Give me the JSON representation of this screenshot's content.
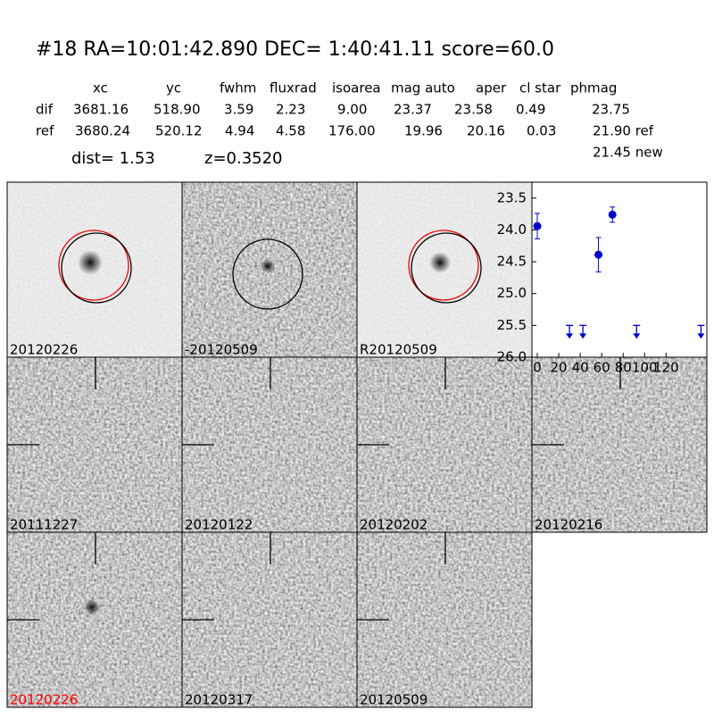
{
  "header": {
    "title": "#18   RA=10:01:42.890 DEC= 1:40:41.11      score=60.0"
  },
  "table": {
    "columns": [
      "xc",
      "yc",
      "fwhm",
      "fluxrad",
      "isoarea",
      "mag auto",
      "aper",
      "cl star",
      "phmag"
    ],
    "rows": [
      [
        "dif",
        "3681.16",
        "518.90",
        "3.59",
        "2.23",
        "9.00",
        "23.37",
        "23.58",
        "0.49",
        "23.75"
      ],
      [
        "ref",
        "3680.24",
        "520.12",
        "4.94",
        "4.58",
        "176.00",
        "19.96",
        "20.16",
        "0.03",
        "21.90 ref"
      ]
    ],
    "extra": "21.45 new",
    "dist": "dist=  1.53",
    "z": "z=0.3520"
  },
  "panels": [
    {
      "label": "20120226"
    },
    {
      "label": "-20120509"
    },
    {
      "label": "R20120509"
    },
    {
      "label": "20111227"
    },
    {
      "label": "20120122"
    },
    {
      "label": "20120202"
    },
    {
      "label": "20120216"
    },
    {
      "label": "20120226",
      "label_color": "#ff0000"
    },
    {
      "label": "20120317"
    },
    {
      "label": "20120509"
    }
  ],
  "chart_data": {
    "type": "scatter",
    "xlim": [
      -5,
      158
    ],
    "ylim": [
      26.0,
      23.25
    ],
    "xticks": [
      0,
      20,
      40,
      60,
      80,
      100,
      120
    ],
    "yticks": [
      {
        "value": 23.5,
        "label": "23.5"
      },
      {
        "value": 24,
        "label": "24.0"
      },
      {
        "value": 24.5,
        "label": "24.5"
      },
      {
        "value": 25,
        "label": "25.0"
      },
      {
        "value": 25.5,
        "label": "25.5"
      },
      {
        "value": 26,
        "label": "26.0"
      }
    ],
    "series": [
      {
        "color": "#0000cc",
        "x": [
          0,
          57,
          70
        ],
        "values": [
          23.94,
          24.39,
          23.76
        ],
        "errors": [
          0.2,
          0.27,
          0.12
        ]
      },
      {
        "color": "#0000cc",
        "upper_limit": true,
        "x": [
          30,
          42.5,
          92.5,
          152.5
        ],
        "values": [
          25.5,
          25.5,
          25.5,
          25.5
        ]
      }
    ]
  }
}
